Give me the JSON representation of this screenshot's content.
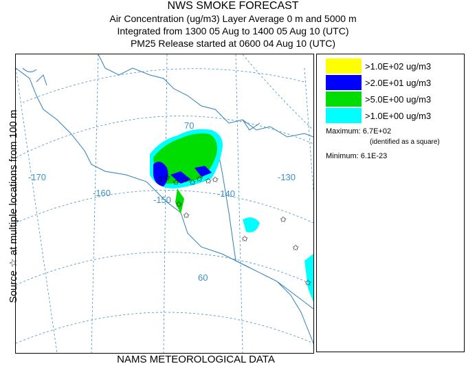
{
  "header": {
    "title": "NWS SMOKE FORECAST",
    "line1": "Air Concentration (ug/m3) Layer Average     0 m and  5000 m",
    "line2": "Integrated from 1300 05 Aug to 1400 05 Aug 10 (UTC)",
    "line3": "PM25 Release started at 0600 04 Aug 10 (UTC)"
  },
  "side_label": "Source ☆  at multiple locations  from  100 m",
  "footer": "NAMS METEOROLOGICAL DATA",
  "legend": {
    "items": [
      {
        "label": ">1.0E+02 ug/m3",
        "color": "#ffff00"
      },
      {
        "label": ">2.0E+01 ug/m3",
        "color": "#0000ff"
      },
      {
        "label": ">5.0E+00 ug/m3",
        "color": "#00dd00"
      },
      {
        "label": ">1.0E+00 ug/m3",
        "color": "#00ffff"
      }
    ],
    "maximum": "Maximum: 6.7E+02",
    "maximum_note": "(identified as a square)",
    "minimum": "Minimum: 6.1E-23"
  },
  "map": {
    "lat_labels": [
      "70",
      "60"
    ],
    "lon_labels": [
      "-170",
      "-160",
      "-150",
      "-140",
      "-130"
    ],
    "graticule_color": "#3a8fc8",
    "coast_color": "#2a7fc0"
  }
}
